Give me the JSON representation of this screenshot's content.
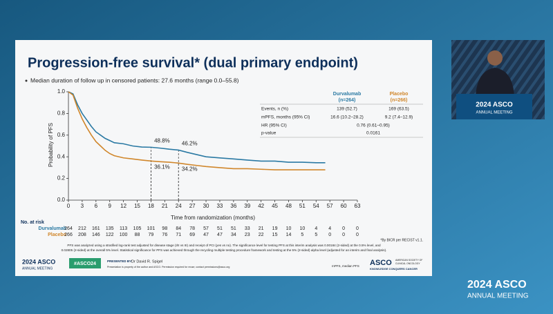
{
  "slide": {
    "title": "Progression-free survival* (dual primary endpoint)",
    "bullet": "Median duration of follow up in censored patients: 27.6 months (range 0.0–55.8)",
    "risk_heading": "No. at risk",
    "footnote_bicr": "*By BICR per RECIST v1.1.",
    "footnote_lines": [
      "PFS was analyzed using a stratified log-rank test adjusted for disease stage (I/II vs III) and receipt of PCI (yes vs no). The significance level for testing PFS at this interim analysis was 0.00184 (2-sided) at the 0.5% level, and",
      "0.02805 (2-sided) at the overall 5% level. Statistical significance for PFS was achieved through the recycling multiple testing procedure framework and testing at the 5% (2-sided) alpha level (adjusted for an interim and final analysis)."
    ],
    "abbrev": "mPFS, median PFS",
    "footer": {
      "logo_year": "2024 ASCO",
      "logo_sub": "ANNUAL MEETING",
      "hashtag": "#ASCO24",
      "presented_by": "PRESENTED BY:",
      "presenter": "Dr David R. Spigel",
      "permission": "Presentation is property of the author and ASCO. Permission required for reuse; contact permissions@asco.org",
      "asco": "ASCO",
      "asco_sub1": "AMERICAN SOCIETY OF",
      "asco_sub2": "CLINICAL ONCOLOGY",
      "asco_tag": "KNOWLEDGE CONQUERS CANCER"
    }
  },
  "efficacy_table": {
    "headers": [
      [
        "Durvalumab",
        "(n=264)"
      ],
      [
        "Placebo",
        "(n=266)"
      ]
    ],
    "rows": [
      {
        "label": "Events, n (%)",
        "cells": [
          "139 (52.7)",
          "169 (63.5)"
        ]
      },
      {
        "label": "mPFS, months (95% CI)",
        "cells": [
          "16.6 (10.2–28.2)",
          "9.2 (7.4–12.9)"
        ]
      },
      {
        "label": "HR (95% CI)",
        "cells": [
          "0.76 (0.61–0.95)"
        ]
      },
      {
        "label": "p-value",
        "cells": [
          "0.0161"
        ]
      }
    ]
  },
  "video": {
    "podium_year": "2024 ASCO",
    "podium_sub": "ANNUAL MEETING"
  },
  "branding": {
    "year": "2024 ASCO",
    "sub": "ANNUAL MEETING"
  },
  "chart_data": {
    "type": "line",
    "x_label": "Time from randomization (months)",
    "y_label": "Probability of PFS",
    "x": [
      0,
      1,
      2,
      3,
      4,
      5,
      6,
      7,
      8,
      9,
      10,
      12,
      14,
      16,
      18,
      20,
      22,
      24,
      26,
      28,
      30,
      33,
      36,
      39,
      42,
      45,
      48,
      51,
      54,
      56
    ],
    "series": [
      {
        "name": "Durvalumab",
        "color": "#2a79a3",
        "values": [
          1.0,
          0.98,
          0.88,
          0.8,
          0.74,
          0.68,
          0.63,
          0.6,
          0.57,
          0.55,
          0.53,
          0.52,
          0.5,
          0.49,
          0.488,
          0.48,
          0.47,
          0.462,
          0.44,
          0.42,
          0.4,
          0.39,
          0.38,
          0.37,
          0.36,
          0.36,
          0.35,
          0.35,
          0.345,
          0.345
        ],
        "at_risk": [
          264,
          212,
          161,
          135,
          113,
          105,
          101,
          98,
          84,
          78,
          57,
          51,
          51,
          33,
          21,
          19,
          10,
          10,
          4,
          4,
          0,
          0
        ]
      },
      {
        "name": "Placebo",
        "color": "#d0862a",
        "values": [
          1.0,
          0.97,
          0.85,
          0.75,
          0.67,
          0.6,
          0.54,
          0.5,
          0.46,
          0.43,
          0.41,
          0.39,
          0.38,
          0.37,
          0.361,
          0.355,
          0.35,
          0.342,
          0.33,
          0.32,
          0.31,
          0.3,
          0.29,
          0.29,
          0.285,
          0.28,
          0.28,
          0.28,
          0.28,
          0.28
        ],
        "at_risk": [
          266,
          208,
          146,
          122,
          100,
          88,
          79,
          76,
          71,
          69,
          47,
          47,
          34,
          23,
          22,
          15,
          14,
          5,
          5,
          0,
          0,
          0
        ]
      }
    ],
    "annotations": [
      {
        "x": 18,
        "y": 0.488,
        "label": "48.8%"
      },
      {
        "x": 18,
        "y": 0.361,
        "label": "36.1%"
      },
      {
        "x": 24,
        "y": 0.462,
        "label": "46.2%"
      },
      {
        "x": 24,
        "y": 0.342,
        "label": "34.2%"
      }
    ],
    "xlim": [
      0,
      63
    ],
    "xticks": [
      0,
      3,
      6,
      9,
      12,
      15,
      18,
      21,
      24,
      27,
      30,
      33,
      36,
      39,
      42,
      45,
      48,
      51,
      54,
      57,
      60,
      63
    ],
    "ylim": [
      0,
      1
    ],
    "yticks": [
      {
        "value": 0,
        "label": "0.0"
      },
      {
        "value": 0.2,
        "label": "0.2"
      },
      {
        "value": 0.4,
        "label": "0.4"
      },
      {
        "value": 0.6,
        "label": "0.6"
      },
      {
        "value": 0.8,
        "label": "0.8"
      },
      {
        "value": 1,
        "label": "1.0"
      }
    ],
    "grid": false
  }
}
